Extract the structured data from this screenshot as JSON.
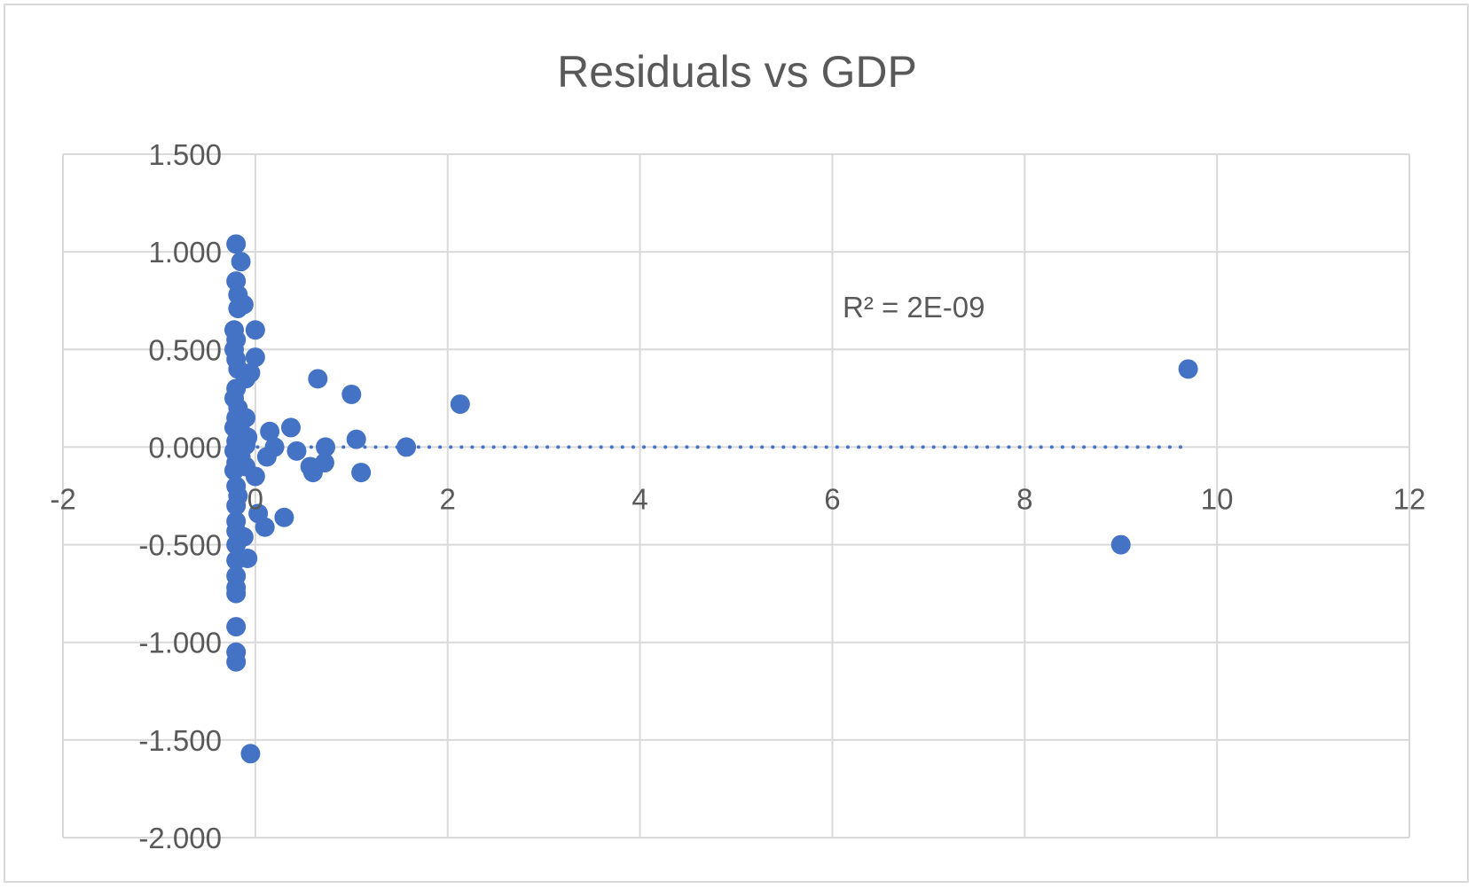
{
  "chart_data": {
    "type": "scatter",
    "title": "Residuals vs GDP",
    "xlabel": "",
    "ylabel": "",
    "xlim": [
      -2,
      12
    ],
    "ylim": [
      -2.0,
      1.5
    ],
    "x_ticks": [
      -2,
      0,
      2,
      4,
      6,
      8,
      10,
      12
    ],
    "x_tick_labels": [
      "-2",
      "0",
      "2",
      "4",
      "6",
      "8",
      "10",
      "12"
    ],
    "y_ticks": [
      1.5,
      1.0,
      0.5,
      0.0,
      -0.5,
      -1.0,
      -1.5,
      -2.0
    ],
    "y_tick_labels": [
      "1.500",
      "1.000",
      "0.500",
      "0.000",
      "-0.500",
      "-1.000",
      "-1.500",
      "-2.000"
    ],
    "grid": true,
    "legend": "none",
    "marker_color": "#4472C4",
    "trendline": {
      "type": "linear",
      "style": "dotted",
      "color": "#4472C4",
      "x_range": [
        -0.2,
        9.7
      ],
      "y_value": 0.0
    },
    "annotations": [
      "R² = 2E-09"
    ],
    "points": [
      {
        "x": -0.2,
        "y": 1.04
      },
      {
        "x": -0.15,
        "y": 0.95
      },
      {
        "x": -0.2,
        "y": 0.85
      },
      {
        "x": -0.18,
        "y": 0.78
      },
      {
        "x": -0.12,
        "y": 0.73
      },
      {
        "x": -0.18,
        "y": 0.71
      },
      {
        "x": 0.0,
        "y": 0.6
      },
      {
        "x": -0.22,
        "y": 0.6
      },
      {
        "x": -0.2,
        "y": 0.55
      },
      {
        "x": -0.22,
        "y": 0.5
      },
      {
        "x": 0.0,
        "y": 0.46
      },
      {
        "x": -0.2,
        "y": 0.45
      },
      {
        "x": -0.18,
        "y": 0.4
      },
      {
        "x": -0.05,
        "y": 0.38
      },
      {
        "x": -0.1,
        "y": 0.35
      },
      {
        "x": -0.2,
        "y": 0.3
      },
      {
        "x": -0.22,
        "y": 0.25
      },
      {
        "x": -0.18,
        "y": 0.2
      },
      {
        "x": -0.2,
        "y": 0.15
      },
      {
        "x": -0.1,
        "y": 0.15
      },
      {
        "x": -0.22,
        "y": 0.1
      },
      {
        "x": -0.15,
        "y": 0.08
      },
      {
        "x": -0.08,
        "y": 0.05
      },
      {
        "x": -0.2,
        "y": 0.03
      },
      {
        "x": -0.1,
        "y": 0.01
      },
      {
        "x": -0.22,
        "y": -0.02
      },
      {
        "x": -0.15,
        "y": -0.05
      },
      {
        "x": -0.2,
        "y": -0.08
      },
      {
        "x": -0.1,
        "y": -0.1
      },
      {
        "x": -0.22,
        "y": -0.12
      },
      {
        "x": 0.0,
        "y": -0.15
      },
      {
        "x": -0.2,
        "y": -0.2
      },
      {
        "x": -0.18,
        "y": -0.25
      },
      {
        "x": -0.2,
        "y": -0.3
      },
      {
        "x": 0.03,
        "y": -0.34
      },
      {
        "x": -0.2,
        "y": -0.38
      },
      {
        "x": 0.1,
        "y": -0.41
      },
      {
        "x": -0.2,
        "y": -0.43
      },
      {
        "x": -0.12,
        "y": -0.46
      },
      {
        "x": -0.2,
        "y": -0.5
      },
      {
        "x": -0.08,
        "y": -0.57
      },
      {
        "x": -0.2,
        "y": -0.58
      },
      {
        "x": -0.2,
        "y": -0.66
      },
      {
        "x": -0.2,
        "y": -0.72
      },
      {
        "x": -0.2,
        "y": -0.75
      },
      {
        "x": -0.2,
        "y": -0.92
      },
      {
        "x": -0.2,
        "y": -1.05
      },
      {
        "x": -0.2,
        "y": -1.1
      },
      {
        "x": -0.05,
        "y": -1.57
      },
      {
        "x": 0.15,
        "y": 0.08
      },
      {
        "x": 0.2,
        "y": 0.0
      },
      {
        "x": 0.12,
        "y": -0.05
      },
      {
        "x": 0.3,
        "y": -0.36
      },
      {
        "x": 0.37,
        "y": 0.1
      },
      {
        "x": 0.43,
        "y": -0.02
      },
      {
        "x": 0.57,
        "y": -0.1
      },
      {
        "x": 0.6,
        "y": -0.13
      },
      {
        "x": 0.65,
        "y": 0.35
      },
      {
        "x": 0.72,
        "y": -0.08
      },
      {
        "x": 0.73,
        "y": 0.0
      },
      {
        "x": 1.0,
        "y": 0.27
      },
      {
        "x": 1.05,
        "y": 0.04
      },
      {
        "x": 1.1,
        "y": -0.13
      },
      {
        "x": 1.57,
        "y": 0.0
      },
      {
        "x": 2.13,
        "y": 0.22
      },
      {
        "x": 9.0,
        "y": -0.5
      },
      {
        "x": 9.7,
        "y": 0.4
      }
    ]
  }
}
